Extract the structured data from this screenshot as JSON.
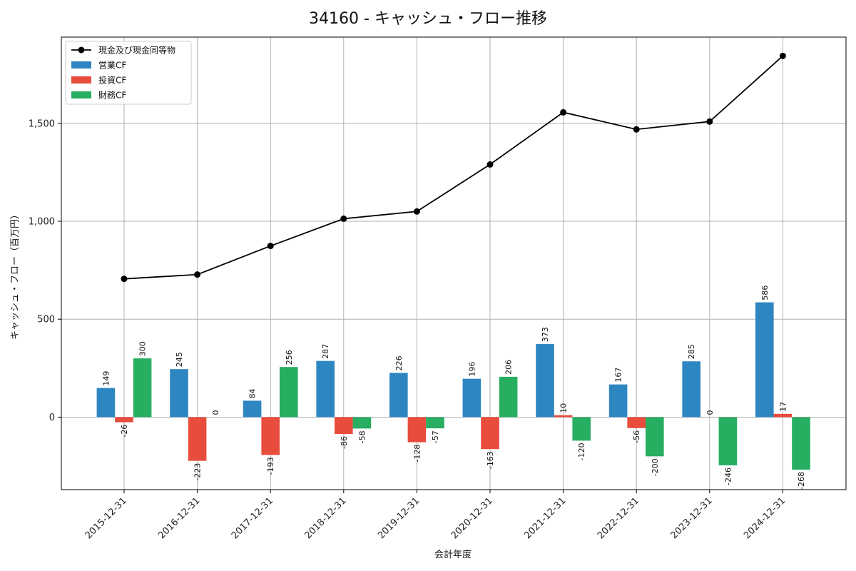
{
  "chart_data": {
    "type": "bar+line",
    "title": "34160 - キャッシュ・フロー推移",
    "xlabel": "会計年度",
    "ylabel": "キャッシュ・フロー（百万円）",
    "ylim": [
      -370,
      1940
    ],
    "yticks": [
      0,
      500,
      1000,
      1500
    ],
    "ytick_labels": [
      "0",
      "500",
      "1,000",
      "1,500"
    ],
    "grid": true,
    "legend_position": "top-left",
    "categories": [
      "2015-12-31",
      "2016-12-31",
      "2017-12-31",
      "2018-12-31",
      "2019-12-31",
      "2020-12-31",
      "2021-12-31",
      "2022-12-31",
      "2023-12-31",
      "2024-12-31"
    ],
    "line": {
      "name": "現金及び現金同等物",
      "color": "#000000",
      "values": [
        706,
        728,
        874,
        1013,
        1050,
        1290,
        1556,
        1469,
        1509,
        1844
      ]
    },
    "series": [
      {
        "name": "営業CF",
        "color": "#2e86c1",
        "values": [
          149,
          245,
          84,
          287,
          226,
          196,
          373,
          167,
          285,
          586
        ]
      },
      {
        "name": "投資CF",
        "color": "#e74c3c",
        "values": [
          -26,
          -223,
          -193,
          -86,
          -128,
          -163,
          10,
          -56,
          0,
          17
        ]
      },
      {
        "name": "財務CF",
        "color": "#27ae60",
        "values": [
          300,
          0,
          256,
          -58,
          -57,
          206,
          -120,
          -200,
          -246,
          -268
        ]
      }
    ]
  }
}
